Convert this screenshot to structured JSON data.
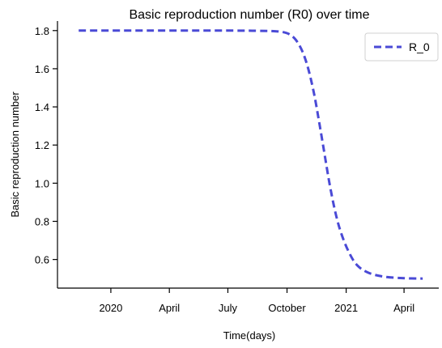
{
  "chart_data": {
    "type": "line",
    "title": "Basic reproduction number (R0) over time",
    "xlabel": "Time(days)",
    "ylabel": "Basic reproduction number",
    "x_ticks": [
      {
        "date": "2020-01-01",
        "label": "2020"
      },
      {
        "date": "2020-04-01",
        "label": "April"
      },
      {
        "date": "2020-07-01",
        "label": "July"
      },
      {
        "date": "2020-10-01",
        "label": "October"
      },
      {
        "date": "2021-01-01",
        "label": "2021"
      },
      {
        "date": "2021-04-01",
        "label": "April"
      }
    ],
    "y_ticks": [
      0.6,
      0.8,
      1.0,
      1.2,
      1.4,
      1.6,
      1.8
    ],
    "xlim": [
      "2019-10-10",
      "2021-05-25"
    ],
    "ylim": [
      0.45,
      1.85
    ],
    "grid": false,
    "legend": {
      "position": "top-right",
      "entries": [
        "R_0"
      ]
    },
    "series": [
      {
        "name": "R_0",
        "color": "#4a4ad6",
        "line_style": "dashed",
        "points": [
          {
            "x": "2019-11-12",
            "y": 1.8
          },
          {
            "x": "2020-03-01",
            "y": 1.8
          },
          {
            "x": "2020-07-01",
            "y": 1.8
          },
          {
            "x": "2020-08-15",
            "y": 1.799
          },
          {
            "x": "2020-09-10",
            "y": 1.797
          },
          {
            "x": "2020-09-25",
            "y": 1.792
          },
          {
            "x": "2020-10-05",
            "y": 1.78
          },
          {
            "x": "2020-10-15",
            "y": 1.75
          },
          {
            "x": "2020-10-25",
            "y": 1.69
          },
          {
            "x": "2020-11-03",
            "y": 1.6
          },
          {
            "x": "2020-11-12",
            "y": 1.47
          },
          {
            "x": "2020-11-20",
            "y": 1.32
          },
          {
            "x": "2020-11-28",
            "y": 1.16
          },
          {
            "x": "2020-12-06",
            "y": 1.0
          },
          {
            "x": "2020-12-15",
            "y": 0.85
          },
          {
            "x": "2020-12-24",
            "y": 0.74
          },
          {
            "x": "2021-01-05",
            "y": 0.64
          },
          {
            "x": "2021-01-18",
            "y": 0.57
          },
          {
            "x": "2021-02-05",
            "y": 0.53
          },
          {
            "x": "2021-03-01",
            "y": 0.51
          },
          {
            "x": "2021-04-01",
            "y": 0.502
          },
          {
            "x": "2021-04-30",
            "y": 0.5
          }
        ]
      }
    ]
  }
}
